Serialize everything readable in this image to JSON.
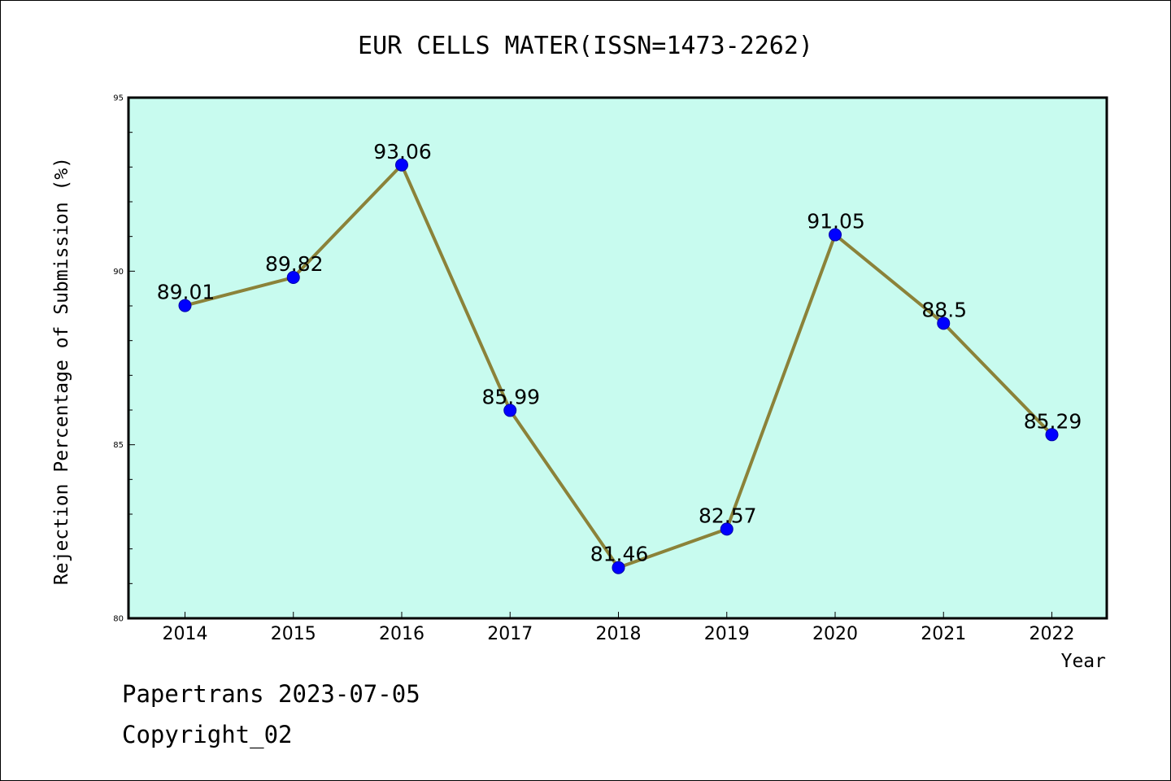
{
  "chart_data": {
    "type": "line",
    "title": "EUR CELLS MATER(ISSN=1473-2262)",
    "xlabel": "Year",
    "ylabel": "Rejection Percentage of Submission (%)",
    "categories": [
      "2014",
      "2015",
      "2016",
      "2017",
      "2018",
      "2019",
      "2020",
      "2021",
      "2022"
    ],
    "series": [
      {
        "values": [
          89.01,
          89.82,
          93.06,
          85.99,
          81.46,
          82.57,
          91.05,
          88.5,
          85.29
        ],
        "labels": [
          "89.01",
          "89.82",
          "93.06",
          "85.99",
          "81.46",
          "82.57",
          "91.05",
          "88.5",
          "85.29"
        ]
      }
    ],
    "ylim": [
      80,
      95
    ],
    "yticks": [
      "80",
      "85",
      "90",
      "95"
    ],
    "grid": false,
    "colors": {
      "plot_background": "#c8fbef",
      "line": "#8b8239",
      "marker": "#0000ff"
    }
  },
  "footer": {
    "line1": "Papertrans 2023-07-05",
    "line2": "Copyright_02"
  }
}
